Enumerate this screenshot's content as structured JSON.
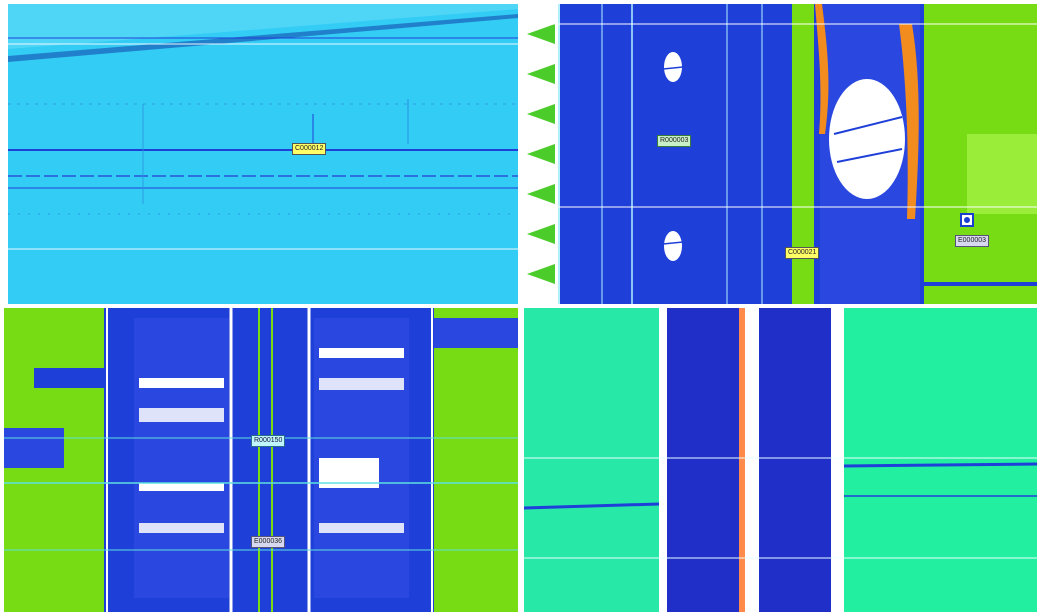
{
  "panels": {
    "top_left": {
      "label": "C000012"
    },
    "top_right": {
      "labels": [
        "R000003",
        "C000021",
        "E000003"
      ]
    },
    "bottom_left": {
      "labels": [
        "R000150",
        "E000036"
      ]
    },
    "bottom_right": {}
  },
  "colors": {
    "cyan_bg": "#33ccf5",
    "deep_blue": "#1f3fd9",
    "lime": "#78dc14",
    "teal_green": "#22f0a0",
    "orange": "#f28c1e",
    "white": "#ffffff"
  }
}
